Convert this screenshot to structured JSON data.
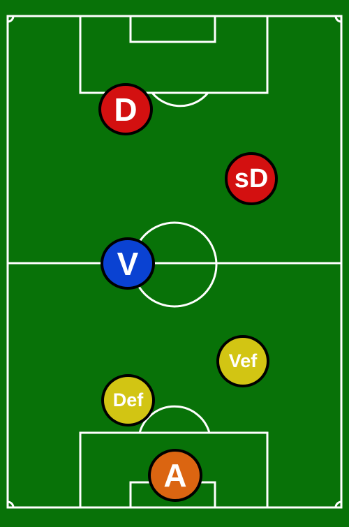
{
  "colors": {
    "pitch": "#087208",
    "lines": "#ffffff",
    "red": "#d31010",
    "blue": "#0a42d2",
    "yellow": "#d2c513",
    "orange": "#db6511",
    "outline": "#000000"
  },
  "players": [
    {
      "id": "D",
      "label": "D",
      "color": "red"
    },
    {
      "id": "sD",
      "label": "sD",
      "color": "red"
    },
    {
      "id": "V",
      "label": "V",
      "color": "blue"
    },
    {
      "id": "Vef",
      "label": "Vef",
      "color": "yellow"
    },
    {
      "id": "Def",
      "label": "Def",
      "color": "yellow"
    },
    {
      "id": "A",
      "label": "A",
      "color": "orange"
    }
  ]
}
